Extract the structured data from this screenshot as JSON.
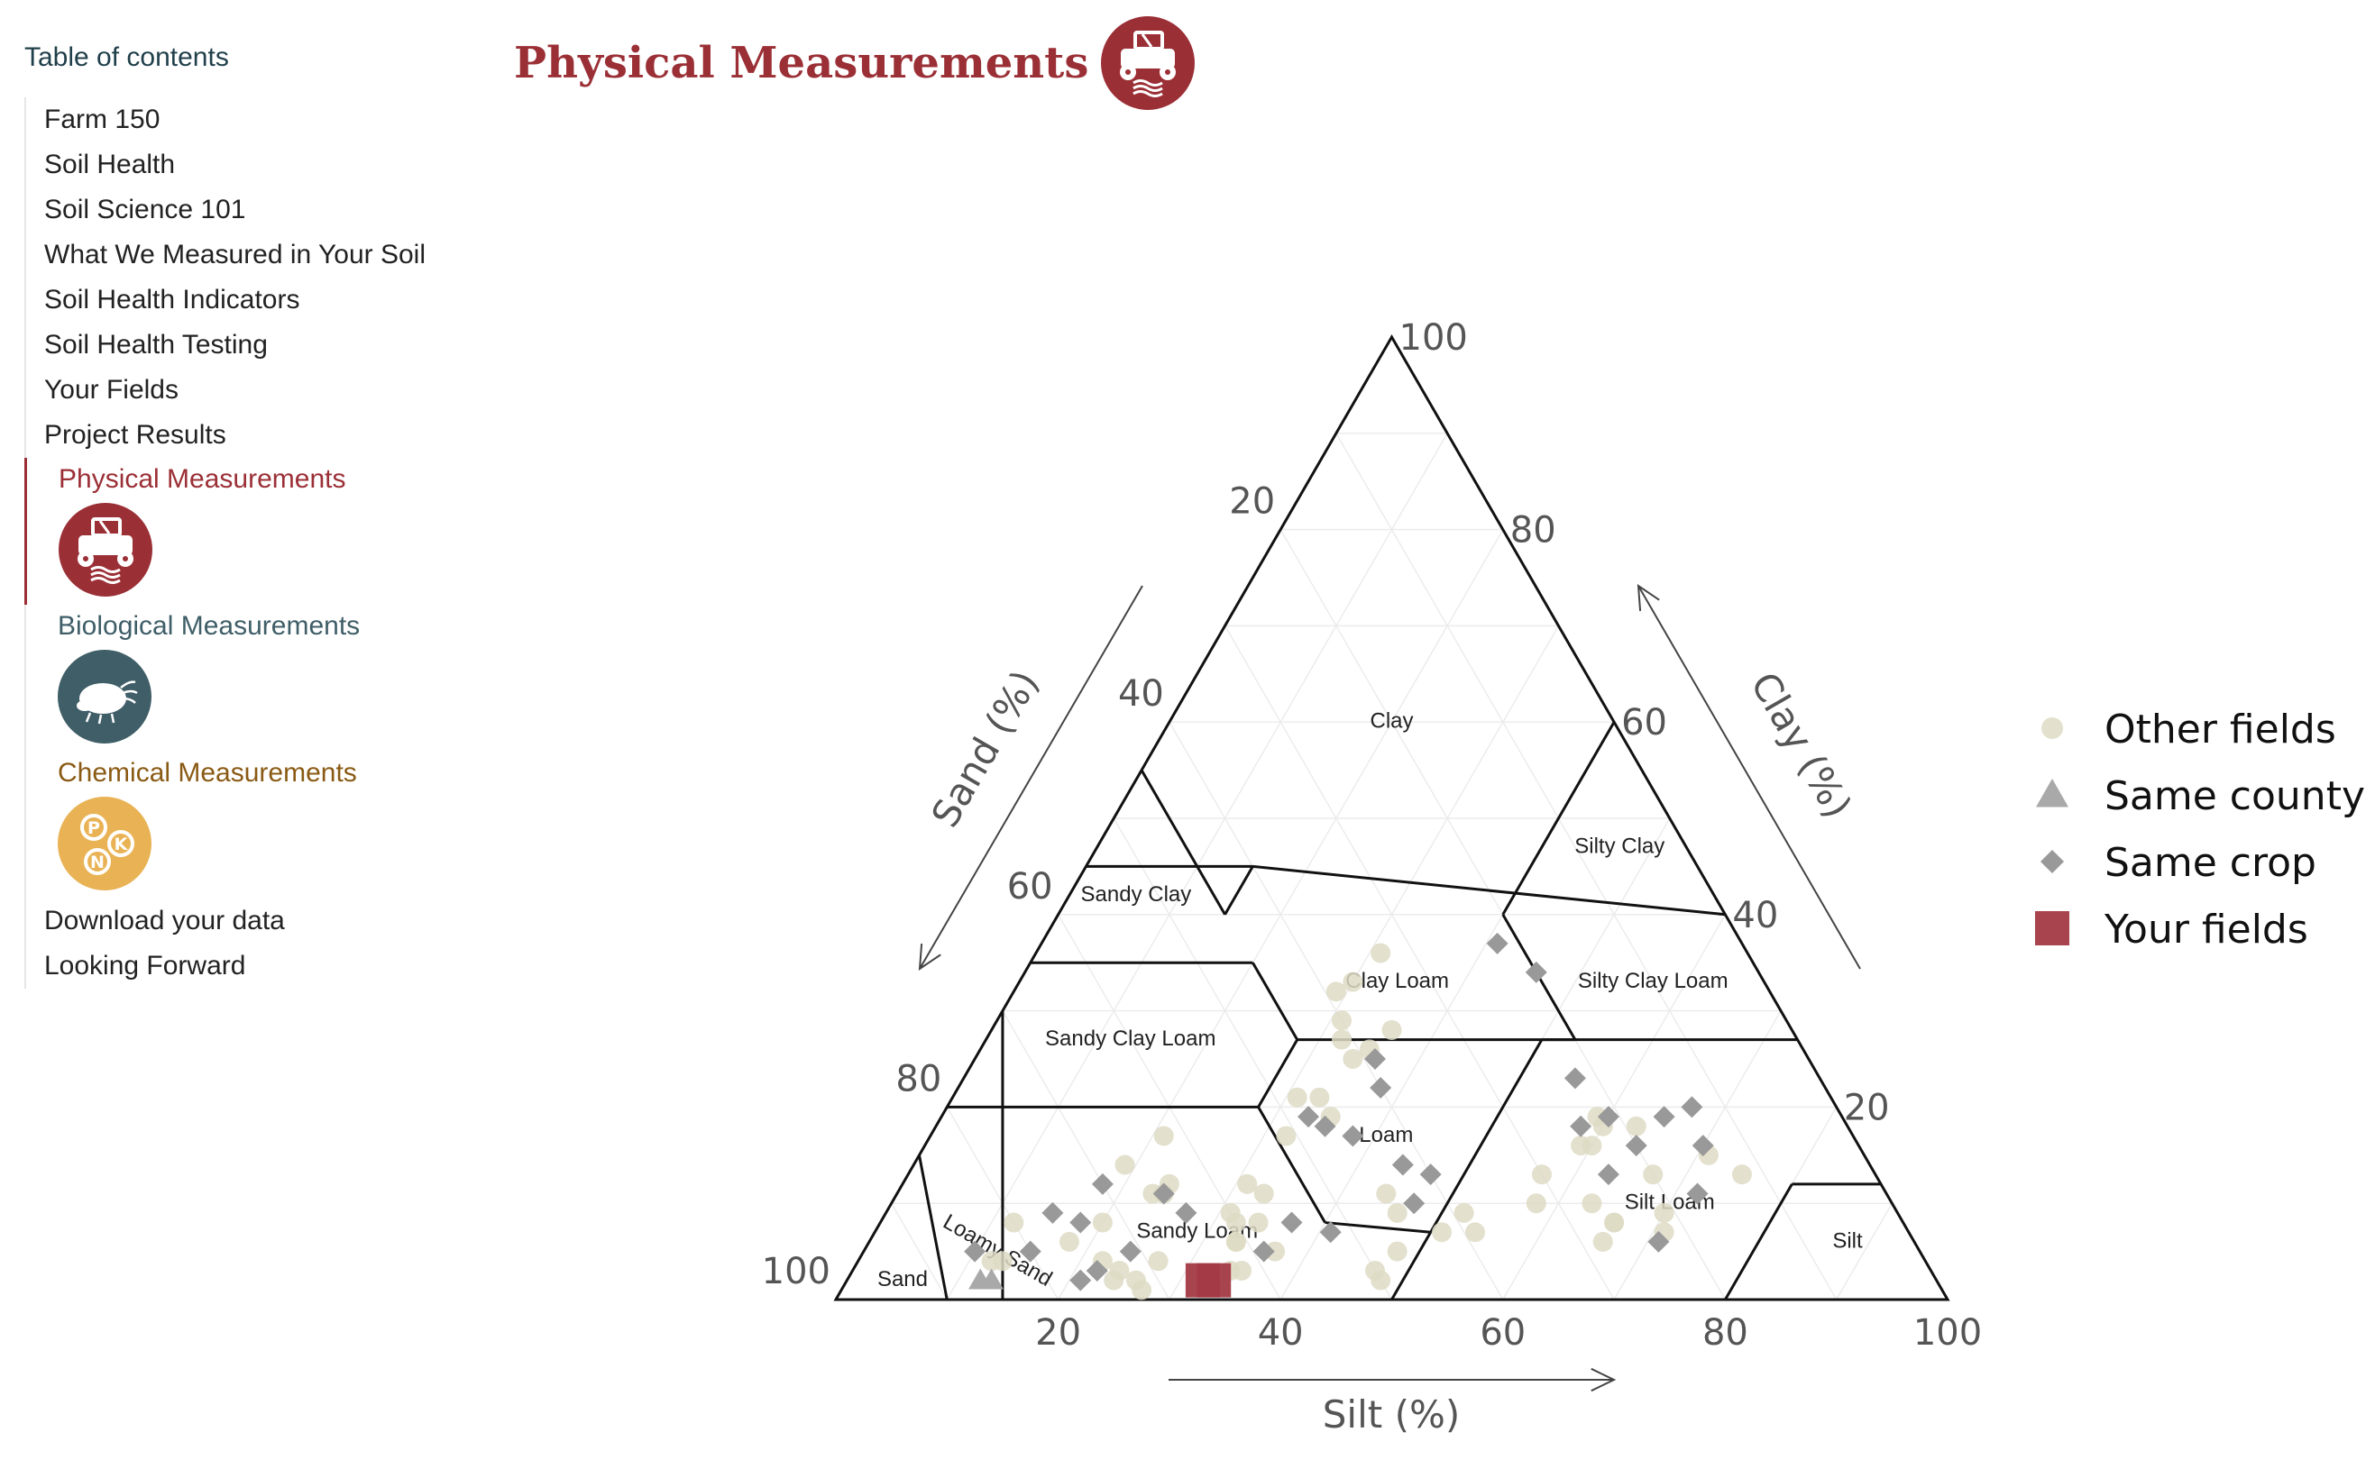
{
  "toc": {
    "title": "Table of contents",
    "items_top": [
      "Farm 150",
      "Soil Health",
      "Soil Science 101",
      "What We Measured in Your Soil",
      "Soil Health Indicators",
      "Soil Health Testing",
      "Your Fields",
      "Project Results"
    ],
    "sub_items": [
      {
        "label": "Physical Measurements",
        "color": "#9b2f36",
        "icon": "tractor-icon",
        "active": true
      },
      {
        "label": "Biological Measurements",
        "color": "#3f5e68",
        "icon": "bug-icon",
        "active": false
      },
      {
        "label": "Chemical Measurements",
        "color": "#8a5a14",
        "icon": "npk-icon",
        "active": false
      }
    ],
    "items_bottom": [
      "Download your data",
      "Looking Forward"
    ]
  },
  "header": {
    "title": "Physical Measurements",
    "icon": "tractor-icon",
    "color": "#9b2f36"
  },
  "chart_data": {
    "type": "scatter",
    "subtype": "ternary-soil-texture",
    "axes": {
      "sand": {
        "title": "Sand (%)",
        "ticks": [
          20,
          40,
          60,
          80,
          100
        ]
      },
      "silt": {
        "title": "Silt (%)",
        "ticks": [
          20,
          40,
          60,
          80,
          100
        ]
      },
      "clay": {
        "title": "Clay (%)",
        "ticks": [
          20,
          40,
          60,
          80,
          100
        ]
      }
    },
    "regions": [
      "Clay",
      "Silty Clay",
      "Sandy Clay",
      "Clay Loam",
      "Silty Clay Loam",
      "Sandy Clay Loam",
      "Loam",
      "Silt Loam",
      "Sandy Loam",
      "Loamy Sand",
      "Sand",
      "Silt"
    ],
    "legend": {
      "placement": "right",
      "entries": [
        {
          "label": "Other fields",
          "shape": "circle",
          "color": "#dedac4"
        },
        {
          "label": "Same county",
          "shape": "triangle",
          "color": "#a9a9a9"
        },
        {
          "label": "Same crop",
          "shape": "diamond",
          "color": "#999999"
        },
        {
          "label": "Your fields",
          "shape": "square",
          "color": "#a33a44"
        }
      ]
    },
    "series": [
      {
        "name": "Other fields",
        "points": [
          {
            "sand": 14,
            "silt": 71,
            "clay": 15
          },
          {
            "sand": 20,
            "silt": 67,
            "clay": 13
          },
          {
            "sand": 30,
            "silt": 57,
            "clay": 13
          },
          {
            "sand": 12,
            "silt": 75,
            "clay": 13
          },
          {
            "sand": 21,
            "silt": 70,
            "clay": 9
          },
          {
            "sand": 28,
            "silt": 66,
            "clay": 6
          },
          {
            "sand": 22,
            "silt": 71,
            "clay": 7
          },
          {
            "sand": 32,
            "silt": 58,
            "clay": 10
          },
          {
            "sand": 26,
            "silt": 66,
            "clay": 8
          },
          {
            "sand": 27,
            "silt": 63,
            "clay": 10
          },
          {
            "sand": 26,
            "silt": 66,
            "clay": 8
          },
          {
            "sand": 39,
            "silt": 54,
            "clay": 7
          },
          {
            "sand": 50,
            "silt": 48,
            "clay": 2
          },
          {
            "sand": 22,
            "silt": 60,
            "clay": 18
          },
          {
            "sand": 25,
            "silt": 59,
            "clay": 16
          },
          {
            "sand": 19,
            "silt": 63,
            "clay": 18
          },
          {
            "sand": 22,
            "silt": 59,
            "clay": 19
          },
          {
            "sand": 24,
            "silt": 60,
            "clay": 16
          },
          {
            "sand": 39,
            "silt": 52,
            "clay": 9
          },
          {
            "sand": 42,
            "silt": 51,
            "clay": 7
          },
          {
            "sand": 47,
            "silt": 48,
            "clay": 5
          },
          {
            "sand": 50,
            "silt": 47,
            "clay": 3
          },
          {
            "sand": 45,
            "silt": 46,
            "clay": 9
          },
          {
            "sand": 45,
            "silt": 44,
            "clay": 11
          },
          {
            "sand": 39,
            "silt": 35,
            "clay": 26
          },
          {
            "sand": 41,
            "silt": 34,
            "clay": 25
          },
          {
            "sand": 41,
            "silt": 32,
            "clay": 27
          },
          {
            "sand": 36,
            "silt": 36,
            "clay": 28
          },
          {
            "sand": 40,
            "silt": 31,
            "clay": 29
          },
          {
            "sand": 39,
            "silt": 29,
            "clay": 32
          },
          {
            "sand": 37,
            "silt": 30,
            "clay": 33
          },
          {
            "sand": 33,
            "silt": 31,
            "clay": 36
          },
          {
            "sand": 46,
            "silt": 35,
            "clay": 19
          },
          {
            "sand": 46,
            "silt": 33,
            "clay": 21
          },
          {
            "sand": 48,
            "silt": 31,
            "clay": 21
          },
          {
            "sand": 51,
            "silt": 32,
            "clay": 17
          },
          {
            "sand": 60,
            "silt": 31,
            "clay": 9
          },
          {
            "sand": 58,
            "silt": 34,
            "clay": 8
          },
          {
            "sand": 58,
            "silt": 37,
            "clay": 5
          },
          {
            "sand": 62,
            "silt": 35,
            "clay": 3
          },
          {
            "sand": 63,
            "silt": 34,
            "clay": 3
          },
          {
            "sand": 56,
            "silt": 33,
            "clay": 11
          },
          {
            "sand": 57,
            "silt": 31,
            "clay": 12
          },
          {
            "sand": 60,
            "silt": 32,
            "clay": 8
          },
          {
            "sand": 61,
            "silt": 33,
            "clay": 6
          },
          {
            "sand": 61,
            "silt": 33,
            "clay": 6
          },
          {
            "sand": 66,
            "silt": 23,
            "clay": 11
          },
          {
            "sand": 72,
            "silt": 20,
            "clay": 8
          },
          {
            "sand": 76,
            "silt": 18,
            "clay": 6
          },
          {
            "sand": 74,
            "silt": 22,
            "clay": 4
          },
          {
            "sand": 73,
            "silt": 24,
            "clay": 3
          },
          {
            "sand": 74,
            "silt": 24,
            "clay": 2
          },
          {
            "sand": 69,
            "silt": 27,
            "clay": 4
          },
          {
            "sand": 65,
            "silt": 24,
            "clay": 11
          },
          {
            "sand": 62,
            "silt": 21,
            "clay": 17
          },
          {
            "sand": 64,
            "silt": 24,
            "clay": 12
          },
          {
            "sand": 67,
            "silt": 19,
            "clay": 14
          },
          {
            "sand": 80,
            "silt": 12,
            "clay": 8
          },
          {
            "sand": 83,
            "silt": 13,
            "clay": 4
          },
          {
            "sand": 84,
            "silt": 12,
            "clay": 4
          },
          {
            "sand": 72,
            "silt": 27,
            "clay": 1
          },
          {
            "sand": 72,
            "silt": 26,
            "clay": 2
          }
        ]
      },
      {
        "name": "Same county",
        "points": [
          {
            "sand": 86,
            "silt": 12,
            "clay": 2
          },
          {
            "sand": 85,
            "silt": 13,
            "clay": 2
          }
        ]
      },
      {
        "name": "Same crop",
        "points": [
          {
            "sand": 14,
            "silt": 70,
            "clay": 16
          },
          {
            "sand": 24,
            "silt": 63,
            "clay": 13
          },
          {
            "sand": 23,
            "silt": 71,
            "clay": 6
          },
          {
            "sand": 43,
            "silt": 47,
            "clay": 10
          },
          {
            "sand": 42,
            "silt": 44,
            "clay": 14
          },
          {
            "sand": 40,
            "silt": 47,
            "clay": 13
          },
          {
            "sand": 39,
            "silt": 36,
            "clay": 25
          },
          {
            "sand": 40,
            "silt": 38,
            "clay": 22
          },
          {
            "sand": 45,
            "silt": 38,
            "clay": 17
          },
          {
            "sand": 48,
            "silt": 33,
            "clay": 19
          },
          {
            "sand": 47,
            "silt": 35,
            "clay": 18
          },
          {
            "sand": 52,
            "silt": 41,
            "clay": 7
          },
          {
            "sand": 55,
            "silt": 37,
            "clay": 8
          },
          {
            "sand": 59,
            "silt": 36,
            "clay": 5
          },
          {
            "sand": 65,
            "silt": 24,
            "clay": 11
          },
          {
            "sand": 64,
            "silt": 27,
            "clay": 9
          },
          {
            "sand": 70,
            "silt": 18,
            "clay": 12
          },
          {
            "sand": 71,
            "silt": 24,
            "clay": 5
          },
          {
            "sand": 74,
            "silt": 18,
            "clay": 8
          },
          {
            "sand": 75,
            "silt": 22,
            "clay": 3
          },
          {
            "sand": 76,
            "silt": 15,
            "clay": 9
          },
          {
            "sand": 85,
            "silt": 10,
            "clay": 5
          },
          {
            "sand": 80,
            "silt": 15,
            "clay": 5
          },
          {
            "sand": 77,
            "silt": 21,
            "clay": 2
          },
          {
            "sand": 22,
            "silt": 41,
            "clay": 37
          },
          {
            "sand": 20,
            "silt": 46,
            "clay": 34
          },
          {
            "sand": 24,
            "silt": 58,
            "clay": 18
          },
          {
            "sand": 22,
            "silt": 55,
            "clay": 23
          },
          {
            "sand": 16,
            "silt": 65,
            "clay": 19
          },
          {
            "sand": 21,
            "silt": 60,
            "clay": 19
          },
          {
            "sand": 13,
            "silt": 67,
            "clay": 20
          },
          {
            "sand": 17,
            "silt": 72,
            "clay": 11
          },
          {
            "sand": 20,
            "silt": 64,
            "clay": 16
          }
        ]
      },
      {
        "name": "Your fields",
        "points": [
          {
            "sand": 65,
            "silt": 33,
            "clay": 2
          },
          {
            "sand": 66,
            "silt": 32,
            "clay": 2
          }
        ]
      }
    ]
  }
}
